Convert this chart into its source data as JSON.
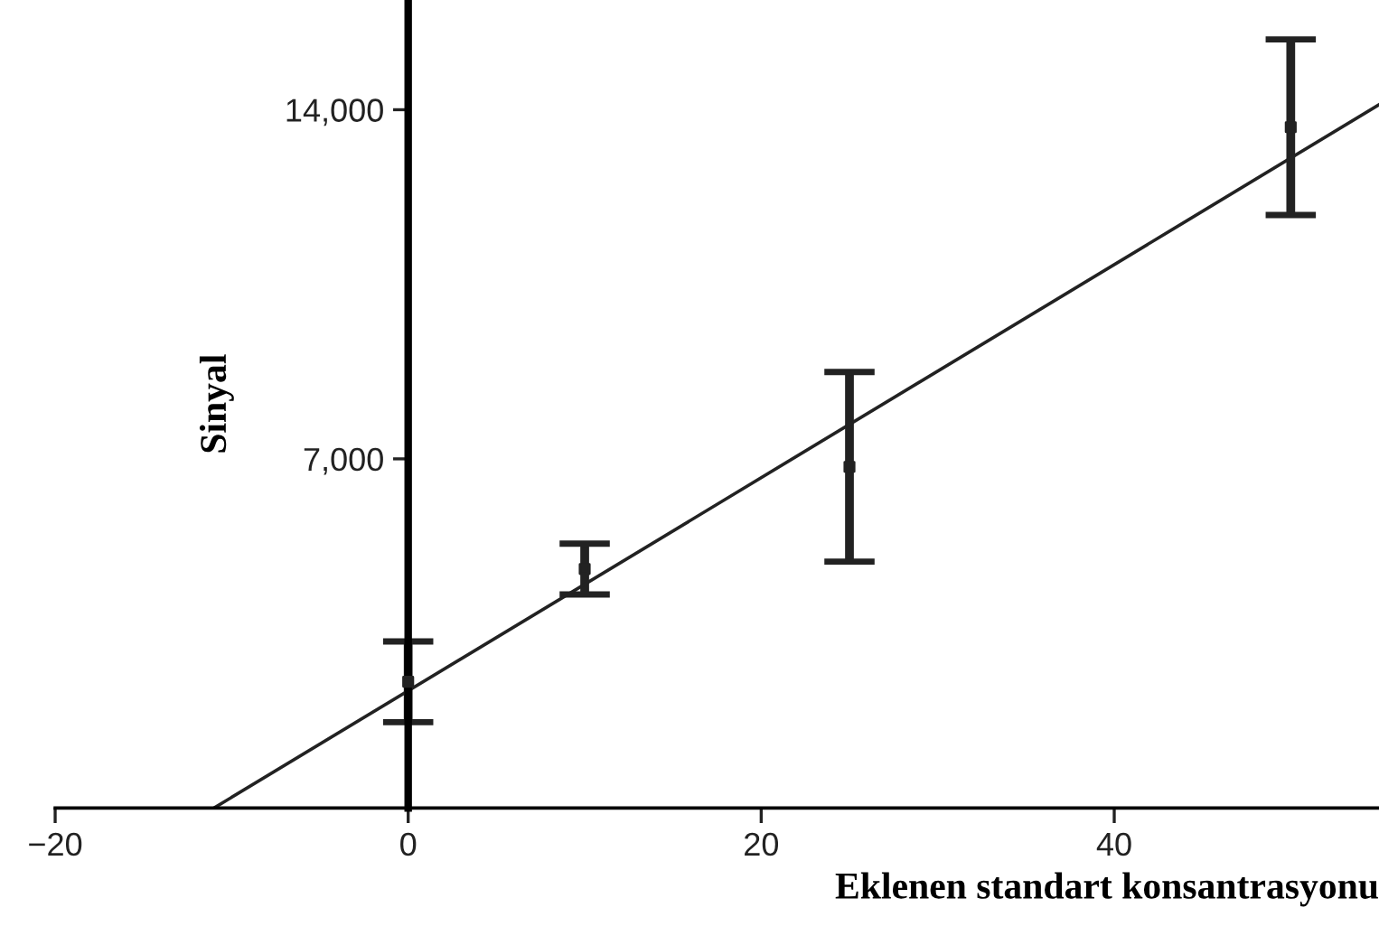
{
  "chart_data": {
    "type": "scatter",
    "xlabel": "Eklenen standart konsantrasyonu",
    "ylabel": "Sinyal",
    "xlim": [
      -20,
      55
    ],
    "ylim": [
      0,
      16200
    ],
    "xticks": [
      -20,
      0,
      20,
      40
    ],
    "yticks": [
      {
        "value": 7000,
        "label": "7,000"
      },
      {
        "value": 14000,
        "label": "14,000"
      }
    ],
    "grid": false,
    "legend": false,
    "series": [
      {
        "marker": "square",
        "color": "#222222",
        "x": [
          0,
          10,
          25,
          50
        ],
        "values": [
          2530,
          4790,
          6840,
          13650
        ],
        "errors": [
          810,
          510,
          1900,
          1760
        ]
      },
      {
        "type": "line",
        "marker": "none",
        "line_style": "solid",
        "color": "#222222",
        "x": [
          -11,
          55
        ],
        "values": [
          0,
          14100
        ]
      }
    ]
  }
}
